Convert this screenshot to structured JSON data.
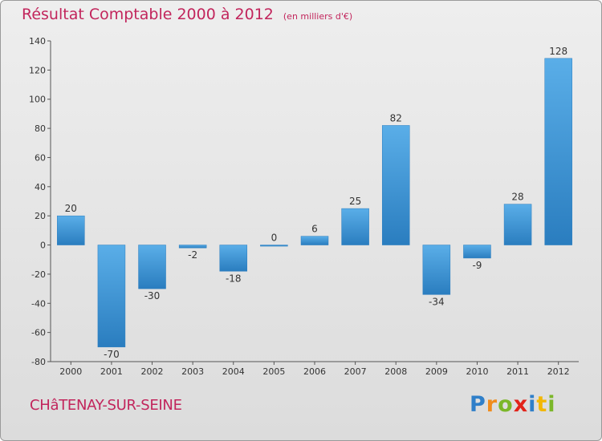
{
  "title": "Résultat Comptable 2000 à 2012",
  "subtitle": "(en milliers d'€)",
  "commune": "CHâTENAY-SUR-SEINE",
  "logo": {
    "letters": [
      "P",
      "r",
      "o",
      "x",
      "i",
      "t",
      "i"
    ],
    "colors": [
      "#2f7fc9",
      "#f08c1c",
      "#7bb729",
      "#e2231a",
      "#2f7fc9",
      "#f2b705",
      "#7bb729"
    ]
  },
  "colors": {
    "bar_light": "#5aaee8",
    "bar_dark": "#2a7dbf",
    "text": "#c2255c"
  },
  "chart_data": {
    "type": "bar",
    "categories": [
      "2000",
      "2001",
      "2002",
      "2003",
      "2004",
      "2005",
      "2006",
      "2007",
      "2008",
      "2009",
      "2010",
      "2011",
      "2012"
    ],
    "values": [
      20,
      -70,
      -30,
      -2,
      -18,
      0,
      6,
      25,
      82,
      -34,
      -9,
      28,
      128
    ],
    "ylim": [
      -80,
      140
    ],
    "yticks": [
      -80,
      -60,
      -40,
      -20,
      0,
      20,
      40,
      60,
      80,
      100,
      120,
      140
    ],
    "grid": false
  }
}
